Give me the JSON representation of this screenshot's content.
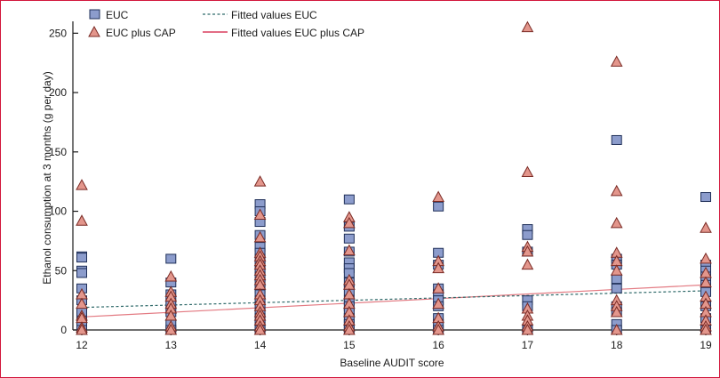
{
  "chart_data": {
    "type": "scatter",
    "title": "",
    "xlabel": "Baseline AUDIT score",
    "ylabel": "Ethanol consumption at 3 months (g per day)",
    "xlim": [
      12,
      19
    ],
    "ylim": [
      0,
      260
    ],
    "x_ticks": [
      12,
      13,
      14,
      15,
      16,
      17,
      18,
      19
    ],
    "y_ticks": [
      0,
      50,
      100,
      150,
      200,
      250
    ],
    "grid": false,
    "legend_position": "top-left",
    "colors": {
      "euc_fill": "#8c9ccc",
      "euc_stroke": "#1f2f58",
      "cap_fill": "#e3968c",
      "cap_stroke": "#7a2a24",
      "fit_euc": "#2f6a6a",
      "fit_cap": "#e37a82",
      "frame": "#d2163c"
    },
    "series": [
      {
        "name": "EUC",
        "marker": "square",
        "points": [
          [
            12,
            62
          ],
          [
            12,
            61
          ],
          [
            12,
            50
          ],
          [
            12,
            48
          ],
          [
            12,
            35
          ],
          [
            12,
            25
          ],
          [
            12,
            15
          ],
          [
            12,
            8
          ],
          [
            12,
            3
          ],
          [
            12,
            0
          ],
          [
            13,
            60
          ],
          [
            13,
            40
          ],
          [
            13,
            30
          ],
          [
            13,
            22
          ],
          [
            13,
            15
          ],
          [
            13,
            5
          ],
          [
            13,
            0
          ],
          [
            14,
            106
          ],
          [
            14,
            100
          ],
          [
            14,
            91
          ],
          [
            14,
            80
          ],
          [
            14,
            70
          ],
          [
            14,
            65
          ],
          [
            14,
            60
          ],
          [
            14,
            55
          ],
          [
            14,
            50
          ],
          [
            14,
            45
          ],
          [
            14,
            40
          ],
          [
            14,
            35
          ],
          [
            14,
            30
          ],
          [
            14,
            25
          ],
          [
            14,
            20
          ],
          [
            14,
            15
          ],
          [
            14,
            10
          ],
          [
            14,
            5
          ],
          [
            14,
            2
          ],
          [
            14,
            0
          ],
          [
            15,
            110
          ],
          [
            15,
            87
          ],
          [
            15,
            77
          ],
          [
            15,
            66
          ],
          [
            15,
            57
          ],
          [
            15,
            52
          ],
          [
            15,
            48
          ],
          [
            15,
            40
          ],
          [
            15,
            33
          ],
          [
            15,
            25
          ],
          [
            15,
            20
          ],
          [
            15,
            15
          ],
          [
            15,
            10
          ],
          [
            15,
            5
          ],
          [
            15,
            0
          ],
          [
            16,
            104
          ],
          [
            16,
            65
          ],
          [
            16,
            55
          ],
          [
            16,
            35
          ],
          [
            16,
            30
          ],
          [
            16,
            25
          ],
          [
            16,
            20
          ],
          [
            16,
            10
          ],
          [
            16,
            5
          ],
          [
            16,
            0
          ],
          [
            17,
            85
          ],
          [
            17,
            80
          ],
          [
            17,
            66
          ],
          [
            17,
            25
          ],
          [
            17,
            20
          ],
          [
            17,
            0
          ],
          [
            18,
            160
          ],
          [
            18,
            60
          ],
          [
            18,
            55
          ],
          [
            18,
            43
          ],
          [
            18,
            35
          ],
          [
            18,
            20
          ],
          [
            18,
            15
          ],
          [
            18,
            5
          ],
          [
            18,
            0
          ],
          [
            19,
            112
          ],
          [
            19,
            55
          ],
          [
            19,
            50
          ],
          [
            19,
            45
          ],
          [
            19,
            38
          ],
          [
            19,
            32
          ],
          [
            19,
            20
          ],
          [
            19,
            10
          ],
          [
            19,
            0
          ]
        ]
      },
      {
        "name": "EUC plus CAP",
        "marker": "triangle",
        "points": [
          [
            12,
            122
          ],
          [
            12,
            92
          ],
          [
            12,
            30
          ],
          [
            12,
            22
          ],
          [
            12,
            12
          ],
          [
            12,
            10
          ],
          [
            12,
            2
          ],
          [
            12,
            0
          ],
          [
            13,
            45
          ],
          [
            13,
            32
          ],
          [
            13,
            28
          ],
          [
            13,
            22
          ],
          [
            13,
            18
          ],
          [
            13,
            12
          ],
          [
            13,
            3
          ],
          [
            13,
            0
          ],
          [
            14,
            125
          ],
          [
            14,
            97
          ],
          [
            14,
            78
          ],
          [
            14,
            65
          ],
          [
            14,
            62
          ],
          [
            14,
            58
          ],
          [
            14,
            55
          ],
          [
            14,
            50
          ],
          [
            14,
            46
          ],
          [
            14,
            42
          ],
          [
            14,
            38
          ],
          [
            14,
            30
          ],
          [
            14,
            25
          ],
          [
            14,
            20
          ],
          [
            14,
            15
          ],
          [
            14,
            12
          ],
          [
            14,
            8
          ],
          [
            14,
            3
          ],
          [
            14,
            0
          ],
          [
            15,
            95
          ],
          [
            15,
            90
          ],
          [
            15,
            67
          ],
          [
            15,
            42
          ],
          [
            15,
            38
          ],
          [
            15,
            30
          ],
          [
            15,
            22
          ],
          [
            15,
            15
          ],
          [
            15,
            8
          ],
          [
            15,
            3
          ],
          [
            15,
            0
          ],
          [
            16,
            112
          ],
          [
            16,
            58
          ],
          [
            16,
            52
          ],
          [
            16,
            35
          ],
          [
            16,
            22
          ],
          [
            16,
            10
          ],
          [
            16,
            3
          ],
          [
            16,
            0
          ],
          [
            17,
            255
          ],
          [
            17,
            133
          ],
          [
            17,
            70
          ],
          [
            17,
            66
          ],
          [
            17,
            55
          ],
          [
            17,
            18
          ],
          [
            17,
            12
          ],
          [
            17,
            8
          ],
          [
            17,
            3
          ],
          [
            17,
            0
          ],
          [
            18,
            226
          ],
          [
            18,
            117
          ],
          [
            18,
            90
          ],
          [
            18,
            65
          ],
          [
            18,
            58
          ],
          [
            18,
            50
          ],
          [
            18,
            25
          ],
          [
            18,
            20
          ],
          [
            18,
            15
          ],
          [
            18,
            0
          ],
          [
            19,
            86
          ],
          [
            19,
            60
          ],
          [
            19,
            48
          ],
          [
            19,
            40
          ],
          [
            19,
            28
          ],
          [
            19,
            22
          ],
          [
            19,
            15
          ],
          [
            19,
            8
          ],
          [
            19,
            3
          ],
          [
            19,
            0
          ]
        ]
      }
    ],
    "fitted_lines": [
      {
        "name": "Fitted values EUC",
        "style": "dashed",
        "points": [
          [
            12,
            19
          ],
          [
            19,
            33
          ]
        ]
      },
      {
        "name": "Fitted values EUC plus CAP",
        "style": "solid",
        "points": [
          [
            12,
            11
          ],
          [
            19,
            38
          ]
        ]
      }
    ],
    "legend": [
      {
        "label": "EUC",
        "symbol": "square"
      },
      {
        "label": "EUC plus CAP",
        "symbol": "triangle"
      },
      {
        "label": "Fitted values EUC",
        "symbol": "dashed-line"
      },
      {
        "label": "Fitted values EUC plus CAP",
        "symbol": "solid-line"
      }
    ]
  }
}
